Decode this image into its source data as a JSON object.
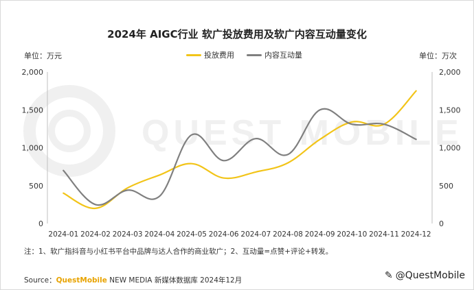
{
  "chart_data": {
    "type": "line",
    "title": "2024年 AIGC行业 软广投放费用及软广内容互动量变化",
    "left_unit": "单位：万元",
    "right_unit": "单位：万次",
    "categories": [
      "2024-01",
      "2024-02",
      "2024-03",
      "2024-04",
      "2024-05",
      "2024-06",
      "2024-07",
      "2024-08",
      "2024-09",
      "2024-10",
      "2024-11",
      "2024-12"
    ],
    "series": [
      {
        "name": "投放费用",
        "axis": "left",
        "color": "#f2c418",
        "values": [
          400,
          200,
          470,
          640,
          790,
          600,
          680,
          800,
          1110,
          1340,
          1310,
          1750
        ]
      },
      {
        "name": "内容互动量",
        "axis": "right",
        "color": "#7f7f7f",
        "values": [
          700,
          250,
          440,
          360,
          1170,
          830,
          1120,
          910,
          1500,
          1310,
          1310,
          1110
        ]
      }
    ],
    "left_ticks": [
      "0",
      "500",
      "1,000",
      "1,500",
      "2,000"
    ],
    "right_ticks": [
      "0",
      "500",
      "1,000",
      "1,500",
      "2,000"
    ],
    "ylim": [
      0,
      2000
    ],
    "grid": false,
    "legend_position": "top-center"
  },
  "watermark_logo": "QUEST MOBILE",
  "note": "注：1、软广指抖音与小红书平台中品牌与达人合作的商业软广；2、互动量=点赞+评论+转发。",
  "source": {
    "prefix": "Source：",
    "brand": "QuestMobile",
    "rest": " NEW MEDIA 新媒体数据库 2024年12月"
  },
  "corner_mark": "@QuestMobile"
}
